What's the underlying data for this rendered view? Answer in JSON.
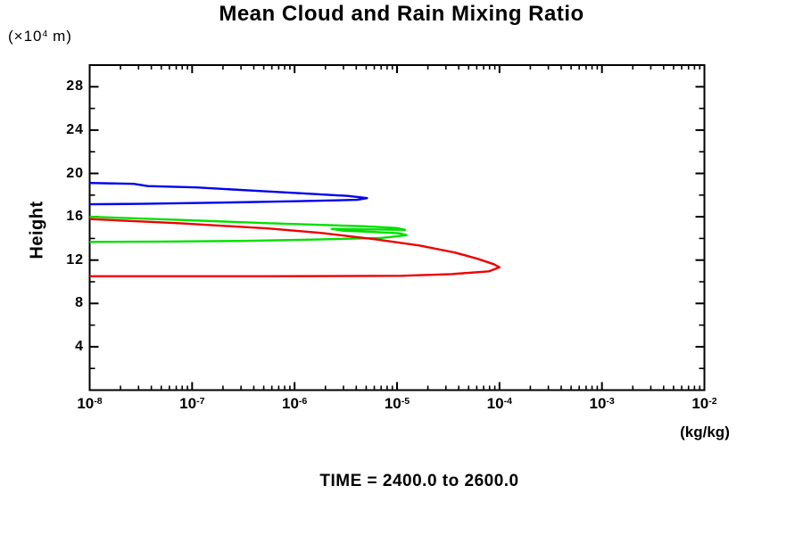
{
  "chart_data": {
    "type": "line",
    "title": "Mean Cloud and Rain Mixing Ratio",
    "ylabel": "Height",
    "y_axis_unit": {
      "prefix": "(×10",
      "sup": "4",
      "suffix": " m)"
    },
    "x_axis_unit": "(kg/kg)",
    "time_caption": "TIME = 2400.0 to 2600.0",
    "x_scale": "log",
    "xlim": [
      1e-08,
      0.01
    ],
    "ylim": [
      0,
      30
    ],
    "x_major_tick_exponents": [
      -8,
      -7,
      -6,
      -5,
      -4,
      -3,
      -2
    ],
    "y_major_ticks": [
      4,
      8,
      12,
      16,
      20,
      24,
      28
    ],
    "y_minor_tick_step": 2,
    "grid": false,
    "legend": "none",
    "series": [
      {
        "name": "blue-curve",
        "color": "#0000ee",
        "points": [
          [
            1e-08,
            19.12
          ],
          [
            2.7e-08,
            19.04
          ],
          [
            3.7e-08,
            18.83
          ],
          [
            1.1e-07,
            18.71
          ],
          [
            3.8e-07,
            18.42
          ],
          [
            1.35e-06,
            18.13
          ],
          [
            3.3e-06,
            17.93
          ],
          [
            5.1e-06,
            17.72
          ],
          [
            4.1e-06,
            17.56
          ],
          [
            1e-06,
            17.43
          ],
          [
            2e-07,
            17.31
          ],
          [
            3.3e-08,
            17.19
          ],
          [
            1e-08,
            17.15
          ]
        ]
      },
      {
        "name": "green-curve",
        "color": "#00e000",
        "points": [
          [
            1e-08,
            16.0
          ],
          [
            7.4e-08,
            15.71
          ],
          [
            5.5e-07,
            15.41
          ],
          [
            1.8e-06,
            15.25
          ],
          [
            4.9e-06,
            15.12
          ],
          [
            9.9e-06,
            14.96
          ],
          [
            1.2e-05,
            14.79
          ],
          [
            4.9e-06,
            14.84
          ],
          [
            2.3e-06,
            14.88
          ],
          [
            3e-06,
            14.71
          ],
          [
            6.1e-06,
            14.59
          ],
          [
            1.06e-05,
            14.47
          ],
          [
            1.24e-05,
            14.3
          ],
          [
            7.1e-06,
            14.05
          ],
          [
            1.5e-06,
            13.89
          ],
          [
            3.1e-07,
            13.77
          ],
          [
            5e-08,
            13.71
          ],
          [
            1e-08,
            13.68
          ]
        ]
      },
      {
        "name": "red-curve",
        "color": "#ee0000",
        "points": [
          [
            1e-08,
            15.79
          ],
          [
            7.4e-08,
            15.41
          ],
          [
            5.5e-07,
            14.92
          ],
          [
            1.8e-06,
            14.51
          ],
          [
            6.1e-06,
            13.93
          ],
          [
            1.65e-05,
            13.35
          ],
          [
            3.7e-05,
            12.69
          ],
          [
            6.1e-05,
            12.12
          ],
          [
            8.8e-05,
            11.62
          ],
          [
            0.0001,
            11.33
          ],
          [
            7.9e-05,
            10.96
          ],
          [
            3.4e-05,
            10.71
          ],
          [
            1.1e-05,
            10.55
          ],
          [
            5.5e-07,
            10.51
          ],
          [
            1e-08,
            10.51
          ]
        ]
      }
    ]
  }
}
